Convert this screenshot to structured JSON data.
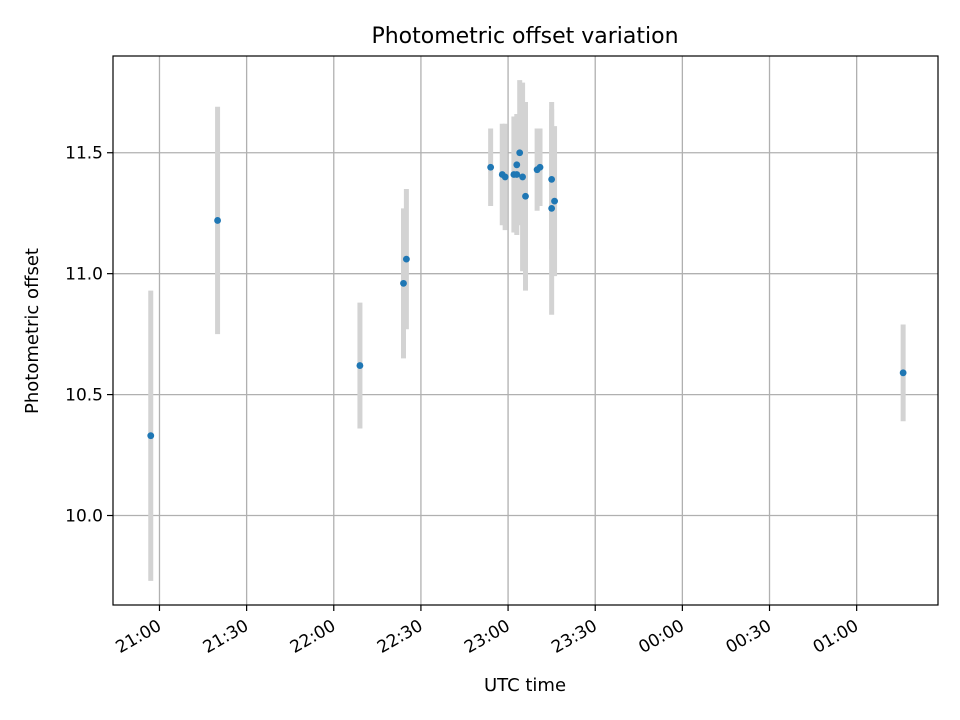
{
  "chart_data": {
    "type": "scatter",
    "title": "Photometric offset variation",
    "xlabel": "UTC time",
    "ylabel": "Photometric offset",
    "grid": true,
    "x_axis": {
      "type": "time",
      "range": [
        "20:44",
        "01:28"
      ],
      "ticks": [
        "21:00",
        "21:30",
        "22:00",
        "22:30",
        "23:00",
        "23:30",
        "00:00",
        "00:30",
        "01:00"
      ]
    },
    "y_axis": {
      "range": [
        9.63,
        11.9
      ],
      "ticks": [
        "10.0",
        "10.5",
        "11.0",
        "11.5"
      ]
    },
    "colors": {
      "points": "#1f77b4",
      "errorbars": "#d3d3d3",
      "grid": "#b0b0b0"
    },
    "points": [
      {
        "x": "20:57",
        "y": 10.33,
        "err": 0.6
      },
      {
        "x": "21:20",
        "y": 11.22,
        "err": 0.47
      },
      {
        "x": "22:09",
        "y": 10.62,
        "err": 0.26
      },
      {
        "x": "22:24",
        "y": 10.96,
        "err": 0.31
      },
      {
        "x": "22:25",
        "y": 11.06,
        "err": 0.29
      },
      {
        "x": "22:54",
        "y": 11.44,
        "err": 0.16
      },
      {
        "x": "22:58",
        "y": 11.41,
        "err": 0.21
      },
      {
        "x": "22:59",
        "y": 11.4,
        "err": 0.22
      },
      {
        "x": "23:02",
        "y": 11.41,
        "err": 0.24
      },
      {
        "x": "23:03",
        "y": 11.45,
        "err": 0.2
      },
      {
        "x": "23:03",
        "y": 11.41,
        "err": 0.25
      },
      {
        "x": "23:04",
        "y": 11.5,
        "err": 0.3
      },
      {
        "x": "23:05",
        "y": 11.4,
        "err": 0.39
      },
      {
        "x": "23:06",
        "y": 11.32,
        "err": 0.39
      },
      {
        "x": "23:10",
        "y": 11.43,
        "err": 0.17
      },
      {
        "x": "23:11",
        "y": 11.44,
        "err": 0.16
      },
      {
        "x": "23:15",
        "y": 11.39,
        "err": 0.29
      },
      {
        "x": "23:15",
        "y": 11.27,
        "err": 0.44
      },
      {
        "x": "23:16",
        "y": 11.3,
        "err": 0.31
      },
      {
        "x": "01:16",
        "y": 10.59,
        "err": 0.2
      }
    ]
  }
}
